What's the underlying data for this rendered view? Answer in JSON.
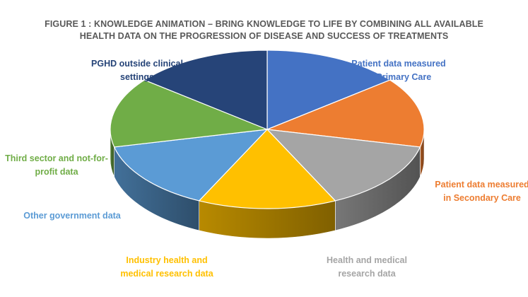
{
  "chart_data": {
    "type": "pie",
    "title": "FIGURE 1 : KNOWLEDGE ANIMATION – BRING KNOWLEDGE TO LIFE BY COMBINING ALL AVAILABLE\nHEALTH DATA ON THE PROGRESSION OF DISEASE AND SUCCESS OF TREATMENTS",
    "slices": [
      {
        "label": "Patient data measured in Primary Care",
        "value": 14.3,
        "color": "#4472C4"
      },
      {
        "label": "Patient data measured in Secondary Care",
        "value": 14.3,
        "color": "#ED7D31"
      },
      {
        "label": "Health and medical research data",
        "value": 14.3,
        "color": "#A5A5A5"
      },
      {
        "label": "Industry health and medical research data",
        "value": 14.3,
        "color": "#FFC000"
      },
      {
        "label": "Other government data",
        "value": 14.3,
        "color": "#5B9BD5"
      },
      {
        "label": "Third sector and not-for-profit data",
        "value": 14.3,
        "color": "#70AD47"
      },
      {
        "label": "PGHD outside clinical settings",
        "value": 14.3,
        "color": "#264478"
      }
    ],
    "label_lines": [
      [
        "Patient data measured",
        "in Primary Care"
      ],
      [
        "Patient data measured",
        "in Secondary Care"
      ],
      [
        "Health and medical",
        "research data"
      ],
      [
        "Industry health and",
        "medical research data"
      ],
      [
        "Other government data"
      ],
      [
        "Third sector and not-for-",
        "profit data"
      ],
      [
        "PGHD outside clinical",
        "settings"
      ]
    ],
    "label_colors": [
      "#4472C4",
      "#ED7D31",
      "#A5A5A5",
      "#FFC000",
      "#5B9BD5",
      "#70AD47",
      "#264478"
    ],
    "legend": "none",
    "grid": false
  }
}
